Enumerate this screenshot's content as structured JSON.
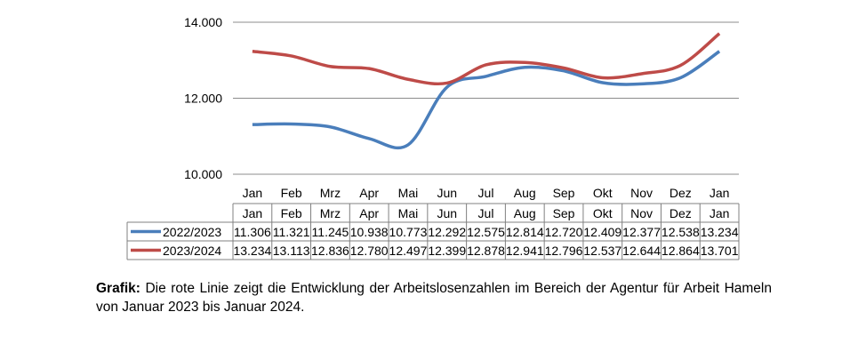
{
  "chart_data": {
    "type": "line",
    "categories": [
      "Jan",
      "Feb",
      "Mrz",
      "Apr",
      "Mai",
      "Jun",
      "Jul",
      "Aug",
      "Sep",
      "Okt",
      "Nov",
      "Dez",
      "Jan"
    ],
    "series": [
      {
        "name": "2022/2023",
        "color": "#4a7ebb",
        "values": [
          11306,
          11321,
          11245,
          10938,
          10773,
          12292,
          12575,
          12814,
          12720,
          12409,
          12377,
          12538,
          13234
        ],
        "labels": [
          "11.306",
          "11.321",
          "11.245",
          "10.938",
          "10.773",
          "12.292",
          "12.575",
          "12.814",
          "12.720",
          "12.409",
          "12.377",
          "12.538",
          "13.234"
        ]
      },
      {
        "name": "2023/2024",
        "color": "#be4b48",
        "values": [
          13234,
          13113,
          12836,
          12780,
          12497,
          12399,
          12878,
          12941,
          12796,
          12537,
          12644,
          12864,
          13701
        ],
        "labels": [
          "13.234",
          "13.113",
          "12.836",
          "12.780",
          "12.497",
          "12.399",
          "12.878",
          "12.941",
          "12.796",
          "12.537",
          "12.644",
          "12.864",
          "13.701"
        ]
      }
    ],
    "yticks": [
      10000,
      12000,
      14000
    ],
    "ytick_labels": [
      "10.000",
      "12.000",
      "14.000"
    ],
    "ylim": [
      10000,
      14000
    ],
    "grid": true,
    "legend": "data-table"
  },
  "caption": {
    "label": "Grafik:",
    "text": " Die rote Linie zeigt die Entwicklung der Arbeitslosenzahlen im Bereich der Agentur für Arbeit Hameln von Januar 2023 bis Januar 2024."
  }
}
